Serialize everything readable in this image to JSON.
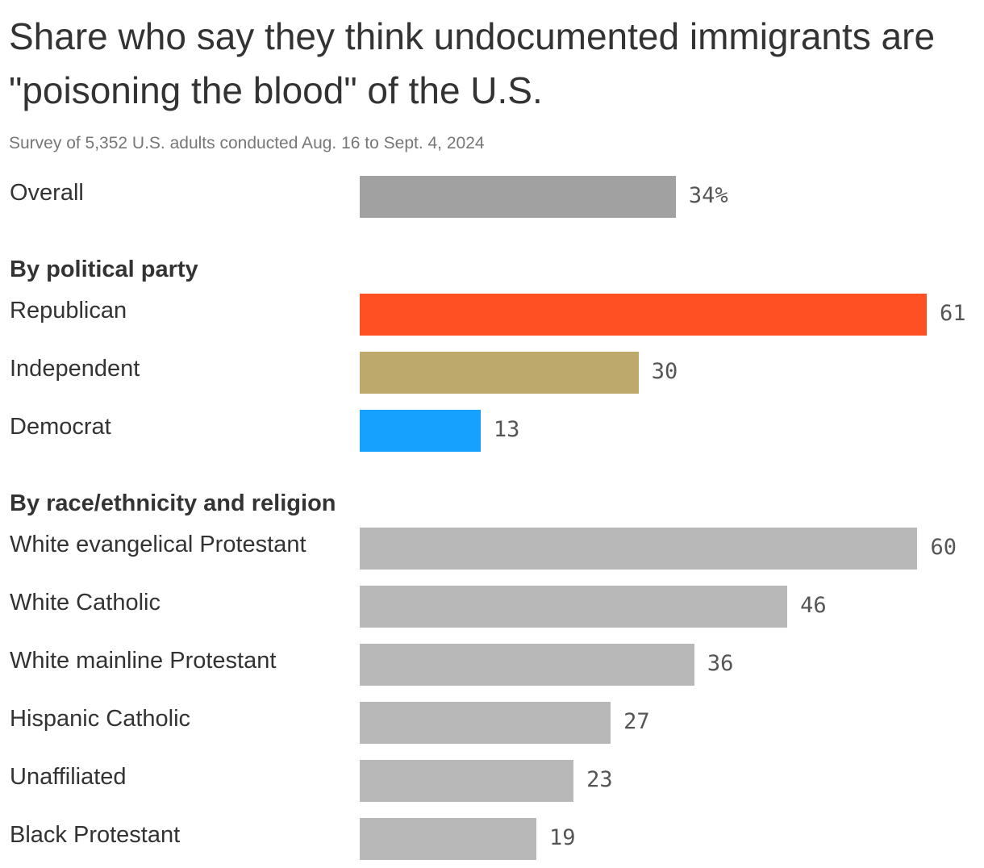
{
  "title": "Share who say they think undocumented immigrants are \"poisoning the blood\" of the U.S.",
  "subtitle": "Survey of 5,352 U.S. adults conducted Aug. 16 to Sept. 4, 2024",
  "chart_data": {
    "type": "bar",
    "orientation": "horizontal",
    "unit": "%",
    "xlim": [
      0,
      61
    ],
    "groups": [
      {
        "header": "",
        "items": [
          {
            "label": "Overall",
            "value": 34,
            "value_label": "34%",
            "color": "#A0A1A0"
          }
        ]
      },
      {
        "header": "By political party",
        "items": [
          {
            "label": "Republican",
            "value": 61,
            "value_label": "61",
            "color": "#FF5023"
          },
          {
            "label": "Independent",
            "value": 30,
            "value_label": "30",
            "color": "#BDA96B"
          },
          {
            "label": "Democrat",
            "value": 13,
            "value_label": "13",
            "color": "#16A0FF"
          }
        ]
      },
      {
        "header": "By race/ethnicity and religion",
        "items": [
          {
            "label": "White evangelical Protestant",
            "value": 60,
            "value_label": "60",
            "color": "#B8B8B8"
          },
          {
            "label": "White Catholic",
            "value": 46,
            "value_label": "46",
            "color": "#B8B8B8"
          },
          {
            "label": "White mainline Protestant",
            "value": 36,
            "value_label": "36",
            "color": "#B8B8B8"
          },
          {
            "label": "Hispanic Catholic",
            "value": 27,
            "value_label": "27",
            "color": "#B8B8B8"
          },
          {
            "label": "Unaffiliated",
            "value": 23,
            "value_label": "23",
            "color": "#B8B8B8"
          },
          {
            "label": "Black Protestant",
            "value": 19,
            "value_label": "19",
            "color": "#B8B8B8"
          }
        ]
      }
    ]
  }
}
